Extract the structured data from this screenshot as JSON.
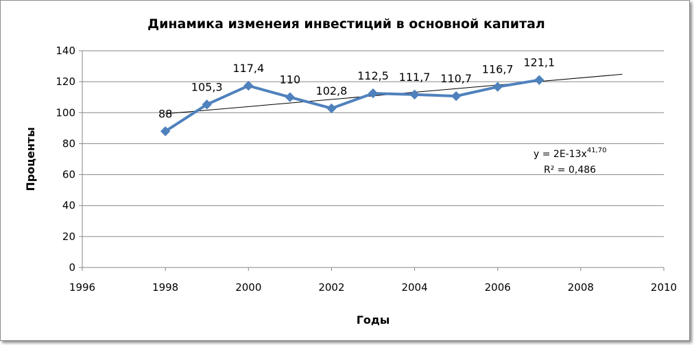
{
  "chart_data": {
    "type": "line",
    "title": "Динамика изменеия инвестиций в основной капитал",
    "xlabel": "Годы",
    "ylabel": "Проценты",
    "xlim": [
      1996,
      2010
    ],
    "ylim": [
      0,
      140
    ],
    "xticks": [
      1996,
      1998,
      2000,
      2002,
      2004,
      2006,
      2008,
      2010
    ],
    "yticks": [
      0,
      20,
      40,
      60,
      80,
      100,
      120,
      140
    ],
    "grid": true,
    "legend": "none",
    "series": [
      {
        "x": [
          1998,
          1999,
          2000,
          2001,
          2002,
          2003,
          2004,
          2005,
          2006,
          2007
        ],
        "y": [
          88,
          105.3,
          117.4,
          110,
          102.8,
          112.5,
          111.7,
          110.7,
          116.7,
          121.1
        ],
        "labels": [
          "88",
          "105,3",
          "117,4",
          "110",
          "102,8",
          "112,5",
          "111,7",
          "110,7",
          "116,7",
          "121,1"
        ],
        "color": "#4f81bd",
        "marker": "diamond"
      }
    ],
    "trendline": {
      "type": "power",
      "x": [
        1998,
        2009
      ],
      "y": [
        99.3,
        124.8
      ],
      "color": "#000000",
      "equation_main": "y = 2E-13x",
      "equation_exp": "41,70",
      "r2_main": "R² = 0,486"
    }
  }
}
